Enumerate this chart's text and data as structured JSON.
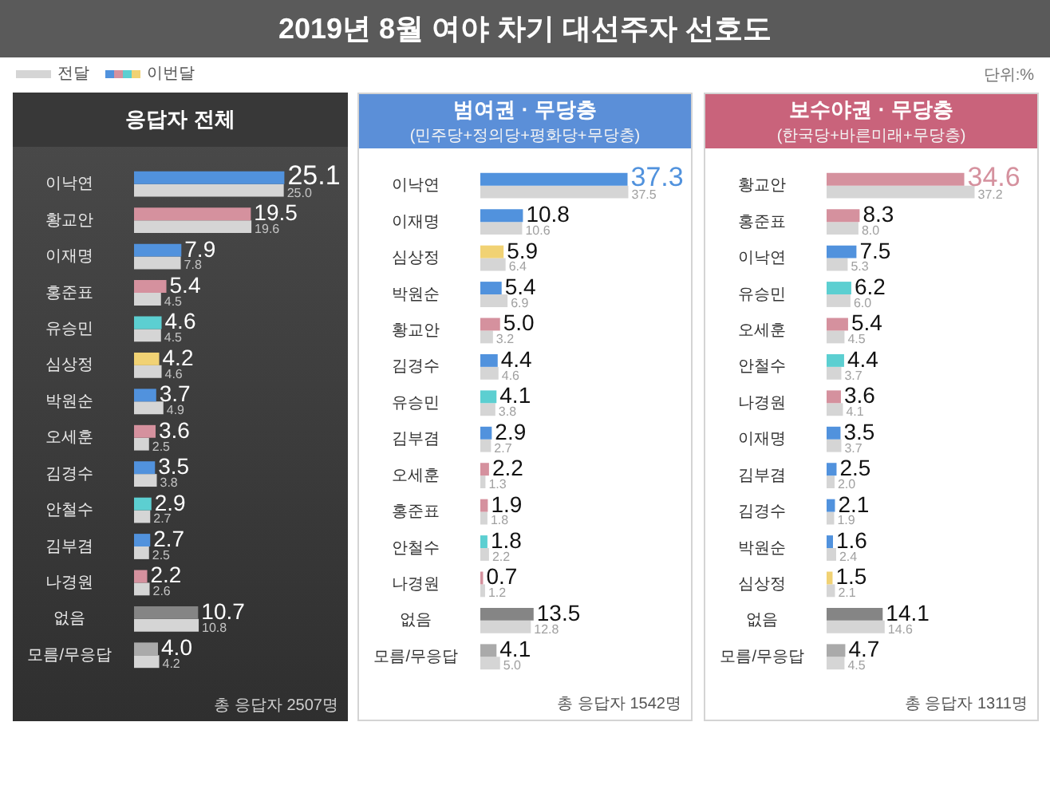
{
  "chart_data": [
    {
      "type": "other",
      "title": "2019년 8월 여야 차기 대선주자 선호도",
      "annotations": [
        "단위:%"
      ]
    },
    {
      "type": "bar",
      "orientation": "horizontal",
      "title": "응답자 전체",
      "legend": "top left",
      "tick_labels": "y",
      "categories": [
        "이낙연",
        "황교안",
        "이재명",
        "홍준표",
        "유승민",
        "심상정",
        "박원순",
        "오세훈",
        "김경수",
        "안철수",
        "김부겸",
        "나경원",
        "없음",
        "모름/무응답"
      ],
      "series": [
        {
          "name": "이번달",
          "colors": [
            "#5192dd",
            "#d5919e",
            "#5192dd",
            "#d5919e",
            "#5ccfd1",
            "#f1d274",
            "#5192dd",
            "#d5919e",
            "#5192dd",
            "#5ccfd1",
            "#5192dd",
            "#d5919e",
            "#858585",
            "#aaaaaa"
          ],
          "values": [
            25.1,
            19.5,
            7.9,
            5.4,
            4.6,
            4.2,
            3.7,
            3.6,
            3.5,
            2.9,
            2.7,
            2.2,
            10.7,
            4.0
          ],
          "value_labels": [
            "25.1",
            "19.5",
            "7.9",
            "5.4",
            "4.6",
            "4.2",
            "3.7",
            "3.6",
            "3.5",
            "2.9",
            "2.7",
            "2.2",
            "10.7",
            "4.0"
          ]
        },
        {
          "name": "전달",
          "color": "#d5d5d5",
          "values": [
            25.0,
            19.6,
            7.8,
            4.5,
            4.5,
            4.6,
            4.9,
            2.5,
            3.8,
            2.7,
            2.5,
            2.6,
            10.8,
            4.2
          ],
          "value_labels": [
            "25.0",
            "19.6",
            "7.8",
            "4.5",
            "4.5",
            "4.6",
            "4.9",
            "2.5",
            "3.8",
            "2.7",
            "2.5",
            "2.6",
            "10.8",
            "4.2"
          ]
        }
      ],
      "annotations": [
        "총 응답자 2507명"
      ]
    },
    {
      "type": "bar",
      "orientation": "horizontal",
      "title": "범여권 · 무당층",
      "subtitle": "(민주당+정의당+평화당+무당층)",
      "tick_labels": "y",
      "categories": [
        "이낙연",
        "이재명",
        "심상정",
        "박원순",
        "황교안",
        "김경수",
        "유승민",
        "김부겸",
        "오세훈",
        "홍준표",
        "안철수",
        "나경원",
        "없음",
        "모름/무응답"
      ],
      "series": [
        {
          "colors": [
            "#5192dd",
            "#5192dd",
            "#f1d274",
            "#5192dd",
            "#d5919e",
            "#5192dd",
            "#5ccfd1",
            "#5192dd",
            "#d5919e",
            "#d5919e",
            "#5ccfd1",
            "#d5919e",
            "#858585",
            "#aaaaaa"
          ],
          "values": [
            37.3,
            10.8,
            5.9,
            5.4,
            5.0,
            4.4,
            4.1,
            2.9,
            2.2,
            1.9,
            1.8,
            0.7,
            13.5,
            4.1
          ],
          "value_labels": [
            "37.3",
            "10.8",
            "5.9",
            "5.4",
            "5.0",
            "4.4",
            "4.1",
            "2.9",
            "2.2",
            "1.9",
            "1.8",
            "0.7",
            "13.5",
            "4.1"
          ]
        },
        {
          "color": "#d5d5d5",
          "values": [
            37.5,
            10.6,
            6.4,
            6.9,
            3.2,
            4.6,
            3.8,
            2.7,
            1.3,
            1.8,
            2.2,
            1.2,
            12.8,
            5.0
          ],
          "value_labels": [
            "37.5",
            "10.6",
            "6.4",
            "6.9",
            "3.2",
            "4.6",
            "3.8",
            "2.7",
            "1.3",
            "1.8",
            "2.2",
            "1.2",
            "12.8",
            "5.0"
          ]
        }
      ],
      "annotations": [
        "총 응답자 1542명"
      ]
    },
    {
      "type": "bar",
      "orientation": "horizontal",
      "title": "보수야권 · 무당층",
      "subtitle": "(한국당+바른미래+무당층)",
      "tick_labels": "y",
      "categories": [
        "황교안",
        "홍준표",
        "이낙연",
        "유승민",
        "오세훈",
        "안철수",
        "나경원",
        "이재명",
        "김부겸",
        "김경수",
        "박원순",
        "심상정",
        "없음",
        "모름/무응답"
      ],
      "series": [
        {
          "colors": [
            "#d5919e",
            "#d5919e",
            "#5192dd",
            "#5ccfd1",
            "#d5919e",
            "#5ccfd1",
            "#d5919e",
            "#5192dd",
            "#5192dd",
            "#5192dd",
            "#5192dd",
            "#f1d274",
            "#858585",
            "#aaaaaa"
          ],
          "values": [
            34.6,
            8.3,
            7.5,
            6.2,
            5.4,
            4.4,
            3.6,
            3.5,
            2.5,
            2.1,
            1.6,
            1.5,
            14.1,
            4.7
          ],
          "value_labels": [
            "34.6",
            "8.3",
            "7.5",
            "6.2",
            "5.4",
            "4.4",
            "3.6",
            "3.5",
            "2.5",
            "2.1",
            "1.6",
            "1.5",
            "14.1",
            "4.7"
          ]
        },
        {
          "color": "#d5d5d5",
          "values": [
            37.2,
            8.0,
            5.3,
            6.0,
            4.5,
            3.7,
            4.1,
            3.7,
            2.0,
            1.9,
            2.4,
            2.1,
            14.6,
            4.5
          ],
          "value_labels": [
            "37.2",
            "8.0",
            "5.3",
            "6.0",
            "4.5",
            "3.7",
            "4.1",
            "3.7",
            "2.0",
            "1.9",
            "2.4",
            "2.1",
            "14.6",
            "4.5"
          ]
        }
      ],
      "annotations": [
        "총 응답자 1311명"
      ]
    }
  ]
}
